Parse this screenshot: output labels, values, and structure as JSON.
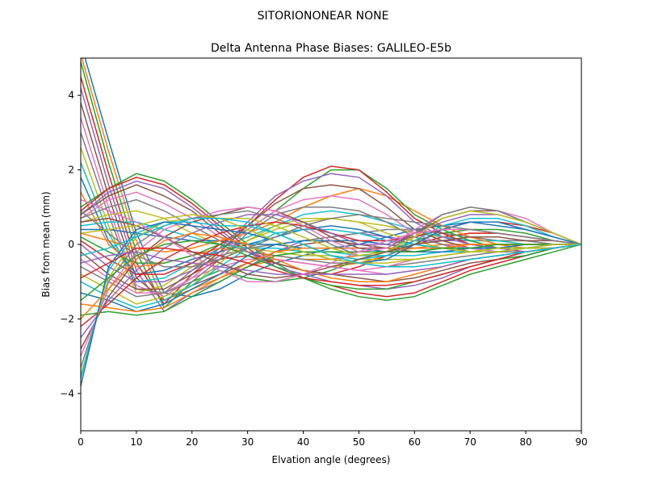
{
  "chart_data": {
    "type": "line",
    "suptitle": "SITORIONONEAR   NONE",
    "title": "Delta Antenna Phase Biases: GALILEO-E5b",
    "xlabel": "Elvation angle (degrees)",
    "ylabel": "Bias from mean (mm)",
    "xlim": [
      0,
      90
    ],
    "ylim": [
      -5,
      5
    ],
    "xticks": [
      "0",
      "10",
      "20",
      "30",
      "40",
      "50",
      "60",
      "70",
      "80",
      "90"
    ],
    "yticks": [
      "−4",
      "−2",
      "0",
      "2",
      "4"
    ],
    "grid": false,
    "legend": "none",
    "x": [
      0,
      5,
      10,
      15,
      20,
      25,
      30,
      35,
      40,
      45,
      50,
      55,
      60,
      65,
      70,
      75,
      80,
      85,
      90
    ],
    "colors": [
      "#1f77b4",
      "#ff7f0e",
      "#2ca02c",
      "#d62728",
      "#9467bd",
      "#8c564b",
      "#e377c2",
      "#7f7f7f",
      "#bcbd22",
      "#17becf"
    ],
    "series": [
      {
        "values": [
          5.4,
          2.8,
          0.3,
          -1.3,
          -1.4,
          -1.2,
          -0.8,
          -0.5,
          -0.3,
          -0.1,
          0.0,
          0.2,
          0.4,
          0.5,
          0.6,
          0.5,
          0.4,
          0.2,
          0.0
        ]
      },
      {
        "values": [
          5.1,
          2.5,
          0.1,
          -1.5,
          -1.2,
          -0.9,
          -0.6,
          -0.4,
          -0.5,
          -0.6,
          -0.5,
          -0.3,
          0.0,
          0.2,
          0.3,
          0.3,
          0.2,
          0.1,
          0.0
        ]
      },
      {
        "values": [
          4.9,
          2.2,
          -0.2,
          -1.7,
          -1.0,
          -0.7,
          -0.9,
          -1.0,
          -0.9,
          -0.7,
          -0.4,
          -0.2,
          0.1,
          0.3,
          0.4,
          0.4,
          0.3,
          0.1,
          0.0
        ]
      },
      {
        "values": [
          4.5,
          1.9,
          -0.5,
          -1.6,
          -0.8,
          -0.4,
          -0.3,
          -0.5,
          -0.7,
          -0.8,
          -0.6,
          -0.3,
          0.0,
          0.2,
          0.3,
          0.3,
          0.2,
          0.1,
          0.0
        ]
      },
      {
        "values": [
          4.2,
          1.6,
          -0.7,
          -1.8,
          -1.3,
          -1.0,
          -0.6,
          -0.2,
          0.1,
          0.2,
          0.3,
          0.2,
          0.1,
          0.1,
          0.1,
          0.1,
          0.1,
          0.0,
          0.0
        ]
      },
      {
        "values": [
          3.8,
          1.3,
          -0.9,
          -1.5,
          -1.1,
          -0.8,
          -0.5,
          -0.2,
          0.0,
          0.1,
          0.0,
          -0.1,
          -0.2,
          -0.1,
          -0.1,
          -0.1,
          0.0,
          0.0,
          0.0
        ]
      },
      {
        "values": [
          3.4,
          1.0,
          -1.1,
          -1.4,
          -0.9,
          -0.6,
          -0.4,
          -0.4,
          -0.5,
          -0.6,
          -0.7,
          -0.6,
          -0.4,
          -0.3,
          -0.2,
          -0.1,
          -0.1,
          0.0,
          0.0
        ]
      },
      {
        "values": [
          3.0,
          0.8,
          -1.2,
          -1.3,
          -0.7,
          -0.3,
          -0.1,
          0.0,
          0.1,
          0.2,
          0.3,
          0.4,
          0.4,
          0.3,
          0.2,
          0.1,
          0.1,
          0.0,
          0.0
        ]
      },
      {
        "values": [
          2.6,
          0.5,
          -1.3,
          -1.1,
          -0.6,
          -0.2,
          0.1,
          0.4,
          0.6,
          0.7,
          0.6,
          0.5,
          0.3,
          0.2,
          0.1,
          0.1,
          0.0,
          0.0,
          0.0
        ]
      },
      {
        "values": [
          2.2,
          0.3,
          -1.0,
          -0.9,
          -0.5,
          -0.1,
          0.2,
          0.5,
          0.8,
          0.9,
          0.8,
          0.6,
          0.4,
          0.2,
          0.1,
          0.1,
          0.0,
          0.0,
          0.0
        ]
      },
      {
        "values": [
          1.8,
          0.1,
          -0.8,
          -0.7,
          -0.4,
          -0.2,
          0.0,
          0.2,
          0.4,
          0.5,
          0.4,
          0.2,
          0.0,
          -0.1,
          -0.1,
          -0.1,
          0.0,
          0.0,
          0.0
        ]
      },
      {
        "values": [
          1.4,
          0.0,
          -0.6,
          -0.5,
          -0.3,
          -0.1,
          -0.2,
          -0.3,
          -0.4,
          -0.4,
          -0.3,
          -0.2,
          -0.1,
          0.0,
          0.0,
          0.0,
          0.0,
          0.0,
          0.0
        ]
      },
      {
        "values": [
          1.0,
          1.5,
          1.9,
          1.7,
          1.2,
          0.6,
          0.0,
          -0.5,
          -0.9,
          -1.2,
          -1.4,
          -1.5,
          -1.4,
          -1.1,
          -0.8,
          -0.6,
          -0.4,
          -0.2,
          0.0
        ]
      },
      {
        "values": [
          0.9,
          1.5,
          1.8,
          1.6,
          1.1,
          0.5,
          -0.1,
          -0.6,
          -0.9,
          -1.1,
          -1.3,
          -1.4,
          -1.3,
          -1.0,
          -0.7,
          -0.5,
          -0.3,
          -0.1,
          0.0
        ]
      },
      {
        "values": [
          0.8,
          1.4,
          1.7,
          1.5,
          1.0,
          0.4,
          -0.2,
          -0.6,
          -0.8,
          -1.0,
          -1.1,
          -1.2,
          -1.1,
          -0.9,
          -0.6,
          -0.4,
          -0.3,
          -0.1,
          0.0
        ]
      },
      {
        "values": [
          0.8,
          1.3,
          1.6,
          1.3,
          0.9,
          0.3,
          -0.2,
          -0.5,
          -0.7,
          -0.8,
          -0.9,
          -1.0,
          -0.9,
          -0.7,
          -0.5,
          -0.4,
          -0.2,
          -0.1,
          0.0
        ]
      },
      {
        "values": [
          0.7,
          1.2,
          1.4,
          1.1,
          0.7,
          0.2,
          -0.2,
          -0.4,
          -0.5,
          -0.6,
          -0.7,
          -0.8,
          -0.7,
          -0.6,
          -0.4,
          -0.3,
          -0.2,
          -0.1,
          0.0
        ]
      },
      {
        "values": [
          0.7,
          1.0,
          1.2,
          0.9,
          0.5,
          0.1,
          -0.2,
          -0.3,
          -0.4,
          -0.5,
          -0.5,
          -0.6,
          -0.5,
          -0.4,
          -0.3,
          -0.2,
          -0.1,
          -0.1,
          0.0
        ]
      },
      {
        "values": [
          0.6,
          0.8,
          0.9,
          0.7,
          0.3,
          0.0,
          -0.1,
          -0.2,
          -0.3,
          -0.3,
          -0.4,
          -0.4,
          -0.4,
          -0.3,
          -0.2,
          -0.2,
          -0.1,
          0.0,
          0.0
        ]
      },
      {
        "values": [
          0.5,
          0.6,
          0.6,
          0.4,
          0.2,
          0.0,
          -0.1,
          -0.1,
          -0.2,
          -0.2,
          -0.3,
          -0.3,
          -0.3,
          -0.2,
          -0.2,
          -0.1,
          -0.1,
          0.0,
          0.0
        ]
      },
      {
        "values": [
          0.4,
          0.4,
          0.3,
          0.2,
          0.1,
          0.1,
          0.0,
          0.0,
          -0.1,
          -0.1,
          -0.1,
          -0.2,
          -0.2,
          -0.2,
          -0.1,
          -0.1,
          -0.1,
          0.0,
          0.0
        ]
      },
      {
        "values": [
          0.3,
          0.1,
          -0.1,
          -0.2,
          -0.1,
          0.1,
          0.3,
          0.6,
          1.0,
          1.3,
          1.5,
          1.3,
          0.9,
          0.5,
          0.2,
          0.0,
          -0.1,
          -0.1,
          0.0
        ]
      },
      {
        "values": [
          0.2,
          -0.2,
          -0.5,
          -0.5,
          -0.3,
          0.0,
          0.4,
          0.9,
          1.5,
          2.0,
          2.0,
          1.5,
          0.8,
          0.4,
          0.1,
          -0.1,
          -0.1,
          -0.1,
          0.0
        ]
      },
      {
        "values": [
          0.1,
          -0.4,
          -0.8,
          -0.8,
          -0.5,
          0.0,
          0.5,
          1.2,
          1.8,
          2.1,
          2.0,
          1.4,
          0.7,
          0.3,
          0.0,
          -0.1,
          -0.2,
          -0.1,
          0.0
        ]
      },
      {
        "values": [
          0.0,
          -0.6,
          -1.0,
          -1.0,
          -0.7,
          -0.1,
          0.6,
          1.3,
          1.7,
          1.9,
          1.8,
          1.3,
          0.6,
          0.2,
          0.0,
          -0.1,
          -0.2,
          -0.1,
          0.0
        ]
      },
      {
        "values": [
          -0.2,
          -0.8,
          -1.2,
          -1.2,
          -0.8,
          -0.2,
          0.5,
          1.1,
          1.5,
          1.6,
          1.5,
          1.0,
          0.4,
          0.1,
          -0.1,
          -0.2,
          -0.2,
          -0.1,
          0.0
        ]
      },
      {
        "values": [
          -0.4,
          -0.9,
          -1.3,
          -1.3,
          -0.9,
          -0.3,
          0.4,
          0.9,
          1.2,
          1.3,
          1.2,
          0.8,
          0.3,
          0.0,
          -0.1,
          -0.2,
          -0.2,
          -0.1,
          0.0
        ]
      },
      {
        "values": [
          -0.6,
          -1.0,
          -1.4,
          -1.3,
          -1.0,
          -0.4,
          0.3,
          0.8,
          1.0,
          1.0,
          0.9,
          0.6,
          0.2,
          0.0,
          -0.2,
          -0.2,
          -0.2,
          -0.1,
          0.0
        ]
      },
      {
        "values": [
          -0.8,
          -1.2,
          -1.6,
          -1.4,
          -1.1,
          -0.5,
          0.1,
          0.5,
          0.7,
          0.7,
          0.6,
          0.3,
          0.1,
          -0.1,
          -0.2,
          -0.2,
          -0.1,
          -0.1,
          0.0
        ]
      },
      {
        "values": [
          -1.0,
          -1.4,
          -1.7,
          -1.5,
          -1.1,
          -0.6,
          -0.1,
          0.3,
          0.4,
          0.4,
          0.3,
          0.1,
          0.0,
          -0.1,
          -0.1,
          -0.1,
          -0.1,
          0.0,
          0.0
        ]
      },
      {
        "values": [
          -1.3,
          -1.5,
          -1.8,
          -1.6,
          -1.2,
          -0.8,
          -0.3,
          0.0,
          0.1,
          0.1,
          0.1,
          0.0,
          -0.1,
          -0.1,
          -0.1,
          -0.1,
          0.0,
          0.0,
          0.0
        ]
      },
      {
        "values": [
          -1.6,
          -1.7,
          -1.8,
          -1.7,
          -1.3,
          -0.9,
          -0.5,
          -0.2,
          -0.1,
          -0.1,
          -0.1,
          -0.1,
          -0.1,
          -0.1,
          0.0,
          0.0,
          0.0,
          0.0,
          0.0
        ]
      },
      {
        "values": [
          -1.9,
          -1.8,
          -1.9,
          -1.8,
          -1.4,
          -1.0,
          -0.6,
          -0.3,
          -0.2,
          -0.2,
          -0.2,
          -0.2,
          -0.2,
          -0.1,
          -0.1,
          0.0,
          0.0,
          0.0,
          0.0
        ]
      },
      {
        "values": [
          -2.2,
          -1.6,
          -0.9,
          -0.4,
          0.0,
          0.3,
          0.5,
          0.6,
          0.5,
          0.3,
          0.1,
          0.1,
          0.2,
          0.4,
          0.6,
          0.6,
          0.5,
          0.3,
          0.0
        ]
      },
      {
        "values": [
          -2.5,
          -1.5,
          -0.7,
          -0.1,
          0.3,
          0.6,
          0.8,
          0.8,
          0.6,
          0.3,
          0.0,
          0.0,
          0.3,
          0.6,
          0.8,
          0.8,
          0.6,
          0.3,
          0.0
        ]
      },
      {
        "values": [
          -2.8,
          -1.4,
          -0.4,
          0.2,
          0.6,
          0.8,
          1.0,
          0.9,
          0.6,
          0.2,
          -0.1,
          -0.1,
          0.3,
          0.7,
          0.9,
          0.9,
          0.6,
          0.3,
          0.0
        ]
      },
      {
        "values": [
          -3.0,
          -1.2,
          -0.2,
          0.4,
          0.7,
          0.9,
          1.0,
          0.9,
          0.5,
          0.1,
          -0.2,
          -0.1,
          0.4,
          0.8,
          1.0,
          0.9,
          0.7,
          0.3,
          0.0
        ]
      },
      {
        "values": [
          -3.3,
          -1.0,
          0.0,
          0.5,
          0.7,
          0.8,
          0.9,
          0.7,
          0.4,
          0.0,
          -0.3,
          -0.2,
          0.3,
          0.8,
          1.0,
          0.9,
          0.6,
          0.3,
          0.0
        ]
      },
      {
        "values": [
          -3.5,
          -0.9,
          0.2,
          0.6,
          0.7,
          0.7,
          0.7,
          0.5,
          0.2,
          -0.1,
          -0.3,
          -0.2,
          0.2,
          0.7,
          0.9,
          0.8,
          0.6,
          0.3,
          0.0
        ]
      },
      {
        "values": [
          -3.6,
          -0.7,
          0.3,
          0.6,
          0.6,
          0.5,
          0.5,
          0.3,
          0.0,
          -0.3,
          -0.4,
          -0.3,
          0.1,
          0.5,
          0.7,
          0.7,
          0.5,
          0.2,
          0.0
        ]
      },
      {
        "values": [
          -3.8,
          -0.6,
          0.4,
          0.6,
          0.5,
          0.4,
          0.3,
          0.1,
          -0.2,
          -0.4,
          -0.5,
          -0.4,
          0.0,
          0.4,
          0.6,
          0.6,
          0.4,
          0.2,
          0.0
        ]
      },
      {
        "values": [
          -2.0,
          -1.2,
          -0.4,
          0.1,
          0.3,
          0.2,
          0.0,
          -0.4,
          -0.7,
          -0.9,
          -1.0,
          -1.0,
          -0.8,
          -0.6,
          -0.4,
          -0.3,
          -0.2,
          -0.1,
          0.0
        ]
      },
      {
        "values": [
          -1.5,
          -0.9,
          -0.3,
          0.0,
          0.1,
          0.0,
          -0.3,
          -0.6,
          -0.9,
          -1.1,
          -1.2,
          -1.2,
          -1.0,
          -0.8,
          -0.6,
          -0.4,
          -0.3,
          -0.1,
          0.0
        ]
      },
      {
        "values": [
          -0.9,
          -0.5,
          -0.1,
          -0.1,
          -0.2,
          -0.3,
          -0.5,
          -0.7,
          -0.9,
          -1.0,
          -1.1,
          -1.1,
          -1.0,
          -0.8,
          -0.6,
          -0.4,
          -0.2,
          -0.1,
          0.0
        ]
      },
      {
        "values": [
          -0.5,
          -0.3,
          -0.2,
          -0.4,
          -0.5,
          -0.6,
          -0.7,
          -0.8,
          -0.8,
          -0.8,
          -0.8,
          -0.8,
          -0.7,
          -0.6,
          -0.4,
          -0.3,
          -0.2,
          -0.1,
          0.0
        ]
      },
      {
        "values": [
          0.6,
          0.7,
          0.5,
          0.2,
          -0.2,
          -0.5,
          -0.8,
          -0.9,
          -0.8,
          -0.6,
          -0.4,
          -0.2,
          0.0,
          0.1,
          0.2,
          0.2,
          0.1,
          0.1,
          0.0
        ]
      },
      {
        "values": [
          1.2,
          0.9,
          0.6,
          0.2,
          -0.3,
          -0.7,
          -1.0,
          -1.0,
          -0.8,
          -0.5,
          -0.2,
          0.1,
          0.3,
          0.4,
          0.4,
          0.3,
          0.2,
          0.1,
          0.0
        ]
      },
      {
        "values": [
          0.9,
          0.3,
          -0.3,
          -0.6,
          -0.6,
          -0.4,
          -0.1,
          0.2,
          0.5,
          0.7,
          0.8,
          0.7,
          0.6,
          0.5,
          0.4,
          0.3,
          0.2,
          0.1,
          0.0
        ]
      },
      {
        "values": [
          0.3,
          0.4,
          0.5,
          0.7,
          0.8,
          0.7,
          0.4,
          0.1,
          -0.2,
          -0.4,
          -0.5,
          -0.5,
          -0.4,
          -0.3,
          -0.2,
          -0.1,
          -0.1,
          0.0,
          0.0
        ]
      },
      {
        "values": [
          -0.3,
          -0.1,
          0.2,
          0.5,
          0.7,
          0.7,
          0.6,
          0.3,
          0.0,
          -0.3,
          -0.5,
          -0.6,
          -0.6,
          -0.5,
          -0.4,
          -0.3,
          -0.2,
          -0.1,
          0.0
        ]
      }
    ]
  }
}
